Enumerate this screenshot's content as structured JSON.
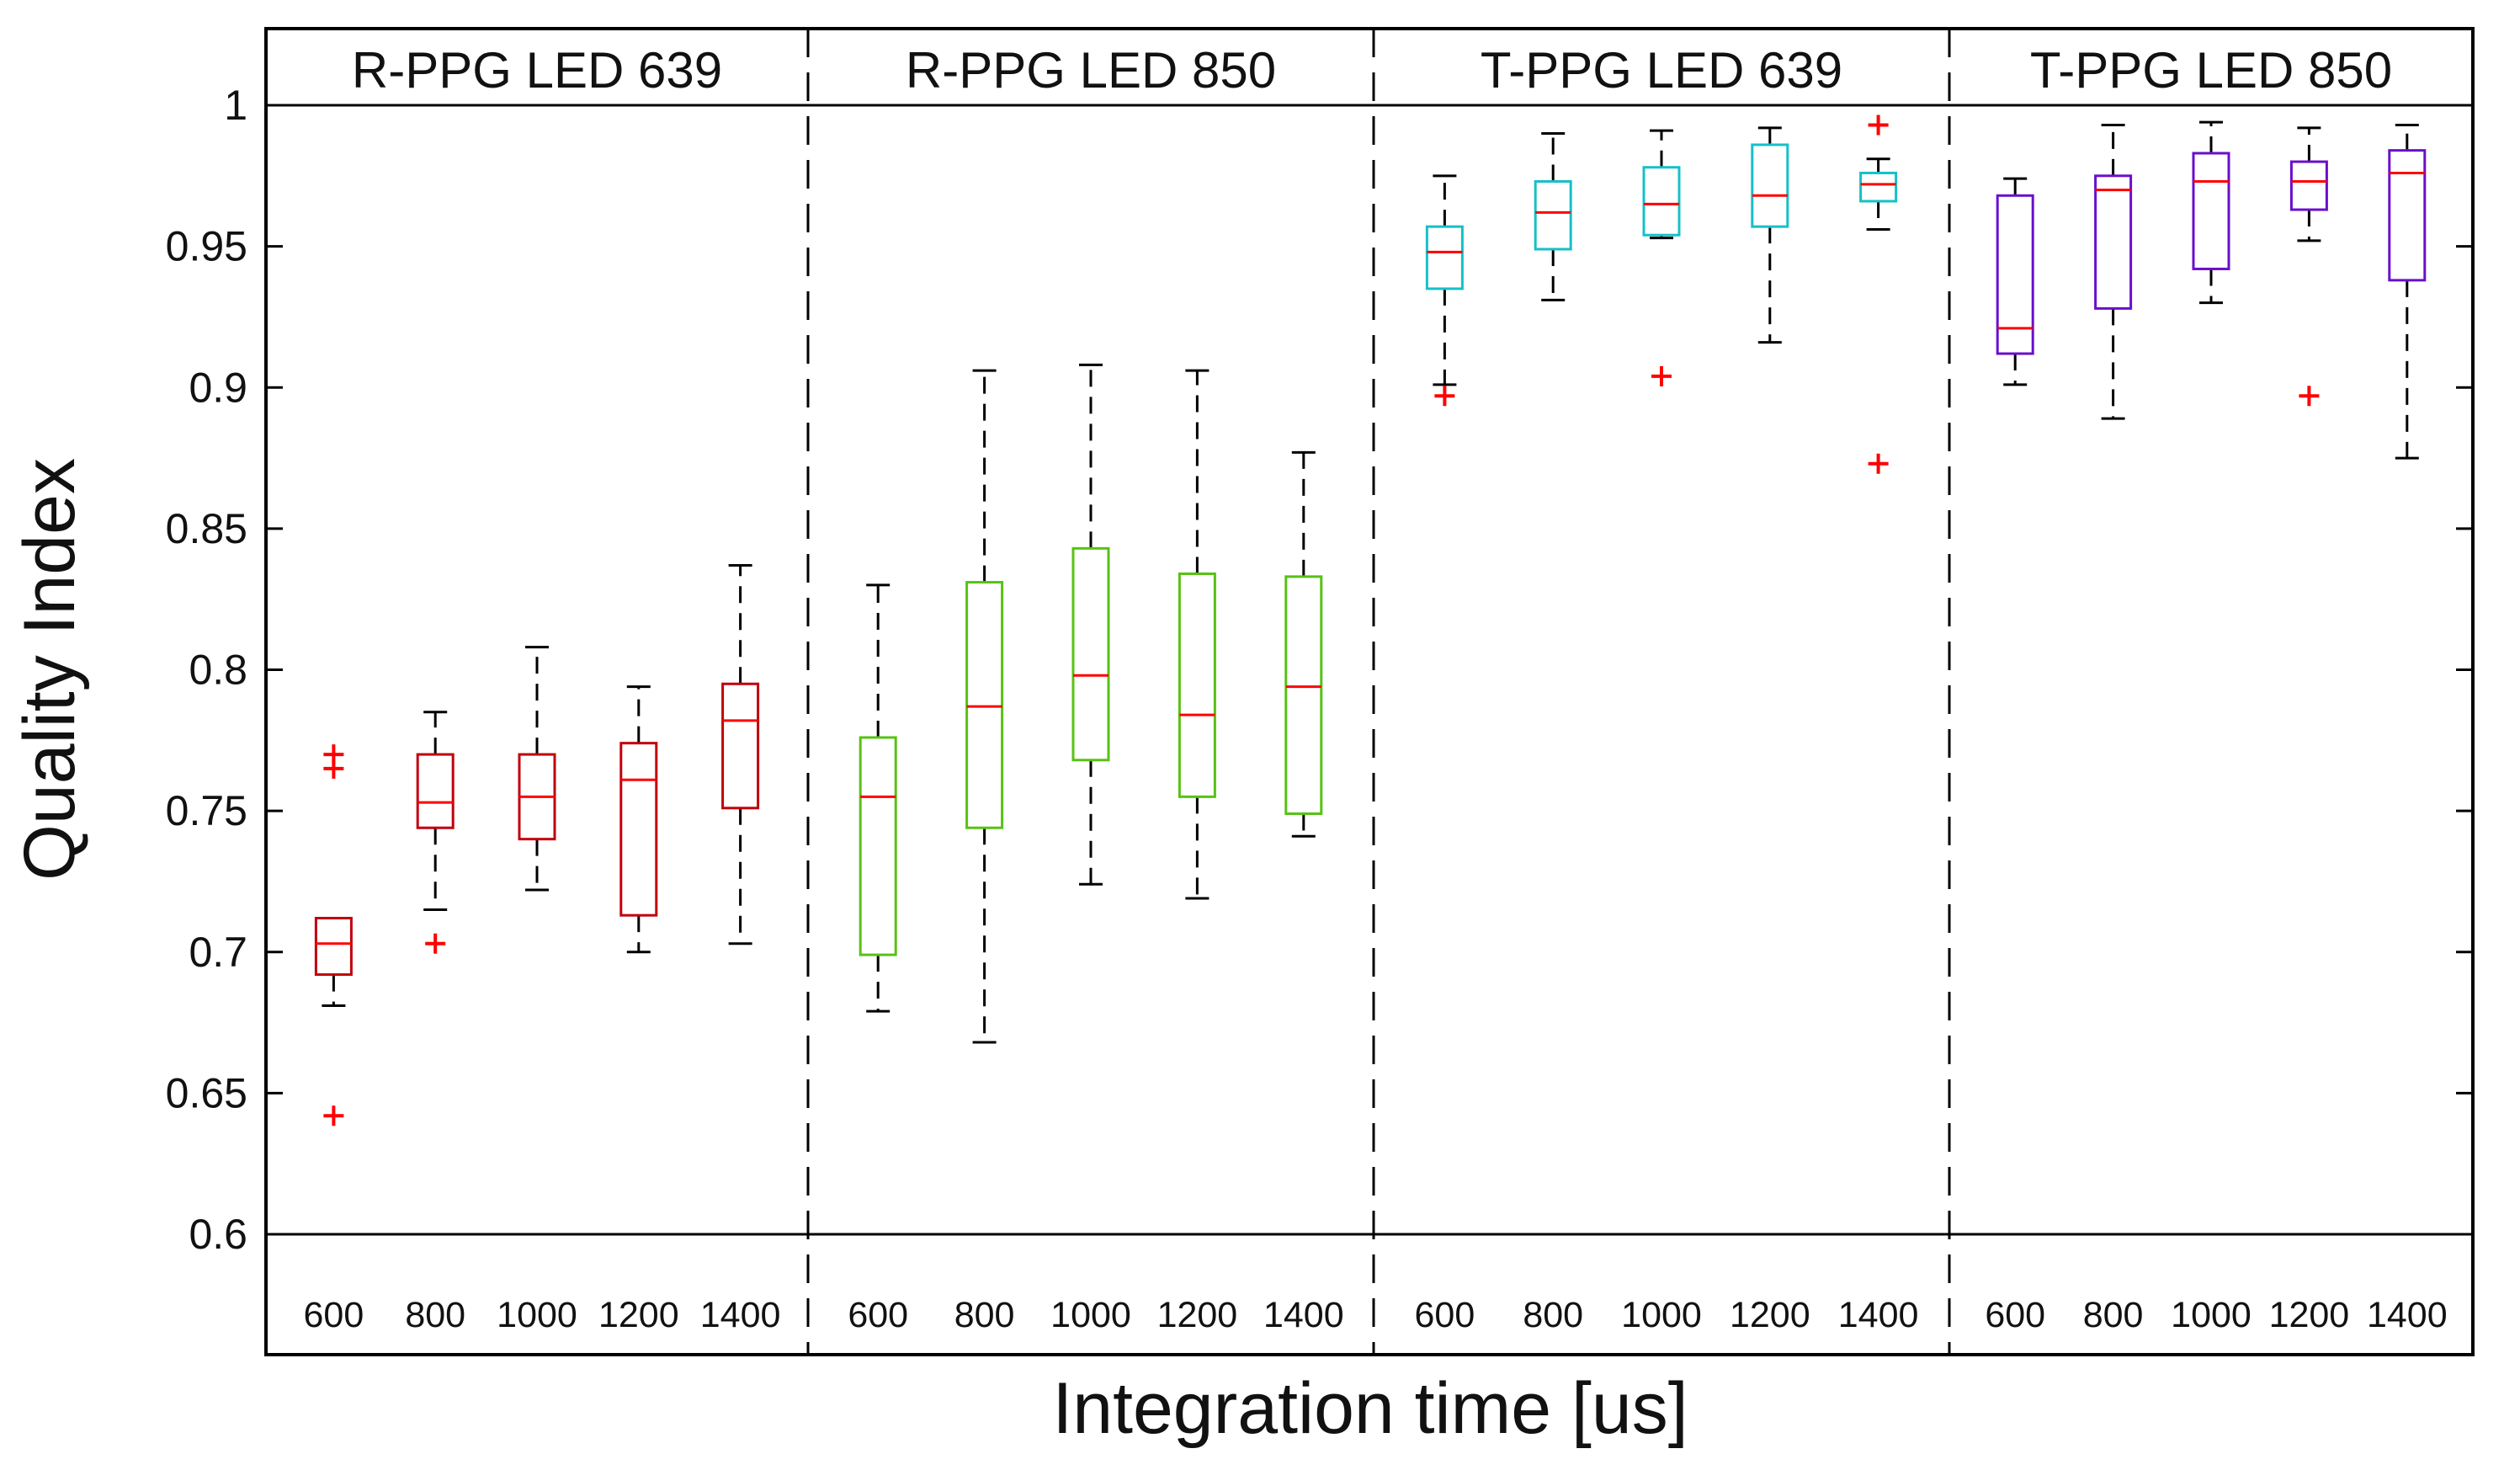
{
  "chart_data": {
    "type": "boxplot",
    "ylabel": "Quality Index",
    "xlabel": "Integration time [us]",
    "ylim": [
      0.6,
      1.0
    ],
    "yticks": [
      "0.6",
      "0.65",
      "0.7",
      "0.75",
      "0.8",
      "0.85",
      "0.9",
      "0.95",
      "1"
    ],
    "categories": [
      "600",
      "800",
      "1000",
      "1200",
      "1400"
    ],
    "median_color": "#ff0000",
    "outlier_color": "#ff0000",
    "whisker_color": "#000000",
    "panels": [
      {
        "title": "R-PPG LED 639",
        "color": "#c0000c",
        "boxes": [
          {
            "min": 0.681,
            "q1": 0.692,
            "median": 0.703,
            "q3": 0.712,
            "max": 0.712,
            "outliers": [
              0.642,
              0.765,
              0.77
            ]
          },
          {
            "min": 0.715,
            "q1": 0.744,
            "median": 0.753,
            "q3": 0.77,
            "max": 0.785,
            "outliers": [
              0.703
            ]
          },
          {
            "min": 0.722,
            "q1": 0.74,
            "median": 0.755,
            "q3": 0.77,
            "max": 0.808,
            "outliers": []
          },
          {
            "min": 0.7,
            "q1": 0.713,
            "median": 0.761,
            "q3": 0.774,
            "max": 0.794,
            "outliers": []
          },
          {
            "min": 0.703,
            "q1": 0.751,
            "median": 0.782,
            "q3": 0.795,
            "max": 0.837,
            "outliers": []
          }
        ]
      },
      {
        "title": "R-PPG LED 850",
        "color": "#57c215",
        "boxes": [
          {
            "min": 0.679,
            "q1": 0.699,
            "median": 0.755,
            "q3": 0.776,
            "max": 0.83,
            "outliers": []
          },
          {
            "min": 0.668,
            "q1": 0.744,
            "median": 0.787,
            "q3": 0.831,
            "max": 0.906,
            "outliers": []
          },
          {
            "min": 0.724,
            "q1": 0.768,
            "median": 0.798,
            "q3": 0.843,
            "max": 0.908,
            "outliers": []
          },
          {
            "min": 0.719,
            "q1": 0.755,
            "median": 0.784,
            "q3": 0.834,
            "max": 0.906,
            "outliers": []
          },
          {
            "min": 0.741,
            "q1": 0.749,
            "median": 0.794,
            "q3": 0.833,
            "max": 0.877,
            "outliers": []
          }
        ]
      },
      {
        "title": "T-PPG LED 639",
        "color": "#16c0c8",
        "boxes": [
          {
            "min": 0.901,
            "q1": 0.935,
            "median": 0.948,
            "q3": 0.957,
            "max": 0.975,
            "outliers": [
              0.897
            ]
          },
          {
            "min": 0.931,
            "q1": 0.949,
            "median": 0.962,
            "q3": 0.973,
            "max": 0.99,
            "outliers": []
          },
          {
            "min": 0.953,
            "q1": 0.954,
            "median": 0.965,
            "q3": 0.978,
            "max": 0.991,
            "outliers": [
              0.904
            ]
          },
          {
            "min": 0.916,
            "q1": 0.957,
            "median": 0.968,
            "q3": 0.986,
            "max": 0.992,
            "outliers": []
          },
          {
            "min": 0.956,
            "q1": 0.966,
            "median": 0.972,
            "q3": 0.976,
            "max": 0.981,
            "outliers": [
              0.873,
              0.993
            ]
          }
        ]
      },
      {
        "title": "T-PPG LED 850",
        "color": "#6a0fcc",
        "boxes": [
          {
            "min": 0.901,
            "q1": 0.912,
            "median": 0.921,
            "q3": 0.968,
            "max": 0.974,
            "outliers": []
          },
          {
            "min": 0.889,
            "q1": 0.928,
            "median": 0.97,
            "q3": 0.975,
            "max": 0.993,
            "outliers": []
          },
          {
            "min": 0.93,
            "q1": 0.942,
            "median": 0.973,
            "q3": 0.983,
            "max": 0.994,
            "outliers": []
          },
          {
            "min": 0.952,
            "q1": 0.963,
            "median": 0.973,
            "q3": 0.98,
            "max": 0.992,
            "outliers": [
              0.897
            ]
          },
          {
            "min": 0.875,
            "q1": 0.938,
            "median": 0.976,
            "q3": 0.984,
            "max": 0.993,
            "outliers": []
          }
        ]
      }
    ]
  }
}
